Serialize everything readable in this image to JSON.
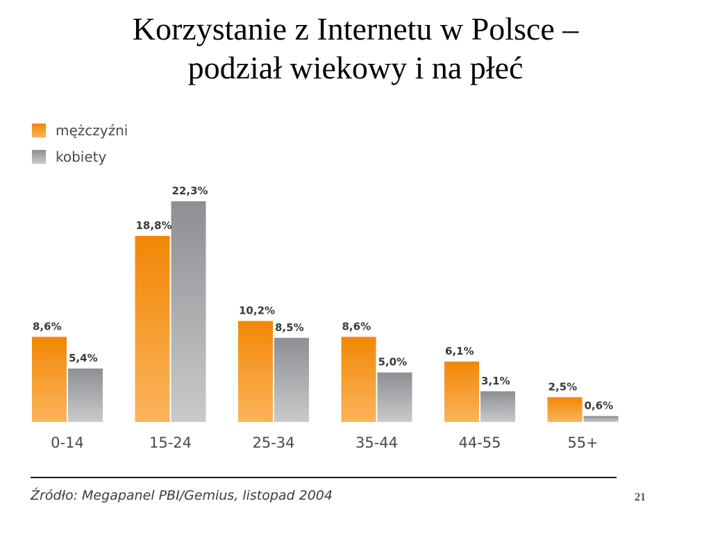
{
  "slide": {
    "title_line1": "Korzystanie z Internetu w Polsce –",
    "title_line2": "podział wiekowy i na płeć",
    "source": "Źródło: Megapanel PBI/Gemius, listopad 2004",
    "page_number": "21"
  },
  "chart_data": {
    "type": "bar",
    "title": "",
    "xlabel": "",
    "ylabel": "",
    "categories": [
      "0-14",
      "15-24",
      "25-34",
      "35-44",
      "44-55",
      "55+"
    ],
    "series": [
      {
        "name": "mężczyźni",
        "values": [
          8.6,
          18.8,
          10.2,
          8.6,
          6.1,
          2.5
        ],
        "labels": [
          "8,6%",
          "18,8%",
          "10,2%",
          "8,6%",
          "6,1%",
          "2,5%"
        ],
        "color": "#f7941d"
      },
      {
        "name": "kobiety",
        "values": [
          5.4,
          22.3,
          8.5,
          5.0,
          3.1,
          0.6
        ],
        "labels": [
          "5,4%",
          "22,3%",
          "8,5%",
          "5,0%",
          "3,1%",
          "0,6%"
        ],
        "color": "#9a9b9d"
      }
    ],
    "ylim": [
      0,
      22.3
    ],
    "grid": false,
    "legend": "top-left"
  }
}
